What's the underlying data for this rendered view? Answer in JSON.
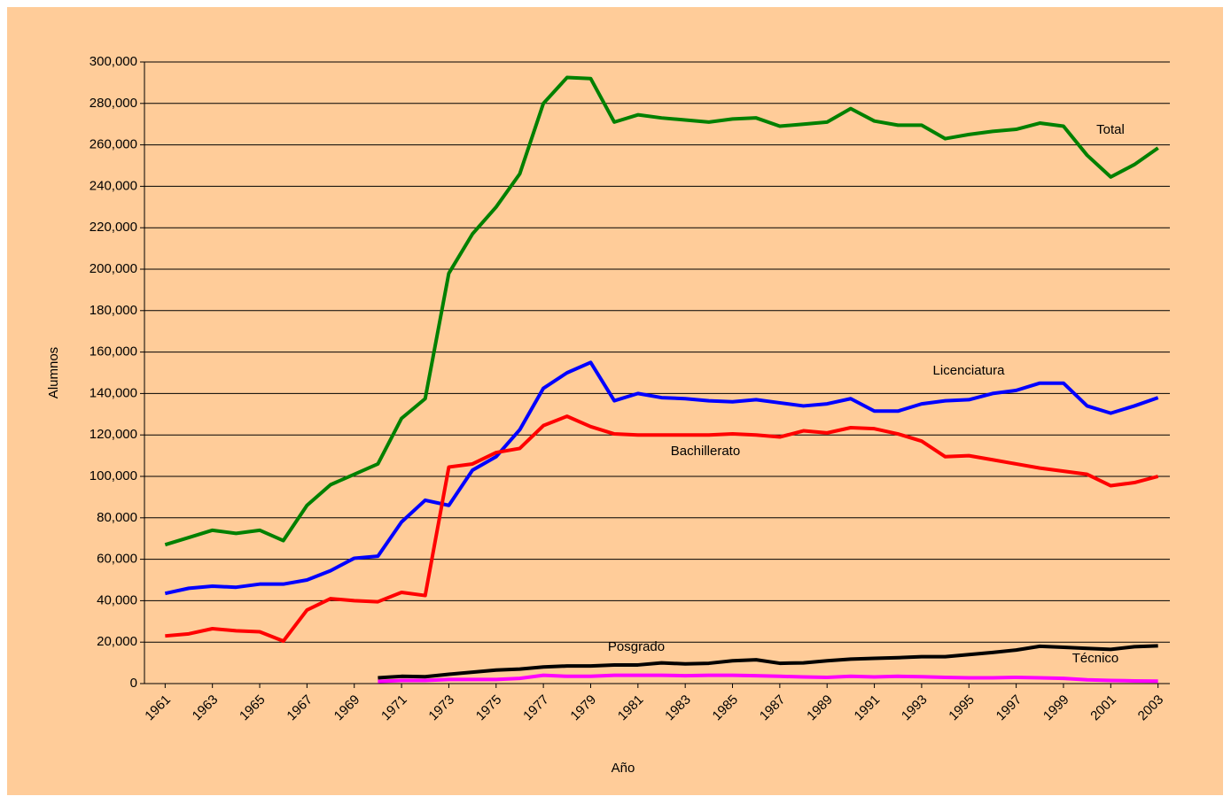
{
  "chart_data": {
    "type": "line",
    "x_label": "Año",
    "y_label": "Alumnos",
    "categories": [
      "1961",
      null,
      "1963",
      null,
      "1965",
      null,
      "1967",
      null,
      "1969",
      null,
      "1971",
      null,
      "1973",
      null,
      "1975",
      null,
      "1977",
      null,
      "1979",
      null,
      "1981",
      null,
      "1983",
      null,
      "1985",
      null,
      "1987",
      null,
      "1989",
      null,
      "1991",
      null,
      "1993",
      null,
      "1995",
      null,
      "1997",
      null,
      "1999",
      null,
      "2001",
      null,
      "2003"
    ],
    "series": [
      {
        "name": "Total",
        "color": "#008000",
        "values": [
          67000,
          70500,
          74000,
          72500,
          74000,
          69000,
          86000,
          96000,
          101000,
          106000,
          128000,
          137500,
          198000,
          217000,
          230000,
          246000,
          280000,
          292500,
          292000,
          271000,
          274500,
          273000,
          272000,
          271000,
          272500,
          273000,
          269000,
          270000,
          271000,
          277500,
          271500,
          269500,
          269500,
          263000,
          265000,
          266500,
          267500,
          270500,
          269000,
          255000,
          244500,
          250500,
          258500
        ]
      },
      {
        "name": "Licenciatura",
        "color": "#0000ff",
        "values": [
          43500,
          46000,
          47000,
          46500,
          48000,
          48000,
          50000,
          54500,
          60500,
          61500,
          78000,
          88500,
          86000,
          103000,
          109500,
          122500,
          142500,
          150000,
          155000,
          136500,
          140000,
          138000,
          137500,
          136500,
          136000,
          137000,
          135500,
          134000,
          135000,
          137500,
          131500,
          131500,
          135000,
          136500,
          137000,
          140000,
          141500,
          145000,
          145000,
          134000,
          130500,
          134000,
          138000
        ]
      },
      {
        "name": "Bachillerato",
        "color": "#ff0000",
        "values": [
          23000,
          24000,
          26500,
          25500,
          25000,
          20500,
          35500,
          41000,
          40000,
          39500,
          44000,
          42500,
          104500,
          106000,
          111500,
          113500,
          124500,
          129000,
          124000,
          120500,
          120000,
          120000,
          120000,
          120000,
          120500,
          120000,
          119000,
          122000,
          121000,
          123500,
          123000,
          120500,
          117000,
          109500,
          110000,
          108000,
          106000,
          104000,
          102500,
          101000,
          95500,
          97000,
          100000
        ]
      },
      {
        "name": "Posgrado",
        "color": "#000000",
        "values": [
          null,
          null,
          null,
          null,
          null,
          null,
          null,
          null,
          null,
          2800,
          3500,
          3300,
          4500,
          5500,
          6500,
          7000,
          8000,
          8500,
          8500,
          9000,
          9000,
          10000,
          9500,
          9800,
          11000,
          11500,
          9800,
          10000,
          11000,
          11800,
          12200,
          12500,
          13000,
          13000,
          14000,
          15000,
          16200,
          18000,
          17500,
          17000,
          16500,
          17800,
          18200
        ]
      },
      {
        "name": "Técnico",
        "color": "#ff00ff",
        "values": [
          null,
          null,
          null,
          null,
          null,
          null,
          null,
          null,
          null,
          1000,
          1500,
          1500,
          2000,
          2000,
          2000,
          2500,
          4000,
          3500,
          3500,
          4000,
          4000,
          4000,
          3800,
          4000,
          4000,
          3800,
          3500,
          3200,
          3000,
          3500,
          3200,
          3500,
          3300,
          3000,
          2800,
          2800,
          3000,
          2800,
          2500,
          1800,
          1500,
          1300,
          1200
        ]
      }
    ],
    "ylim": [
      0,
      300000
    ],
    "yticks": [
      0,
      {
        "value": 20000,
        "label": "20,000"
      },
      {
        "value": 40000,
        "label": "40,000"
      },
      {
        "value": 60000,
        "label": "60,000"
      },
      {
        "value": 80000,
        "label": "80,000"
      },
      {
        "value": 100000,
        "label": "100,000"
      },
      {
        "value": 120000,
        "label": "120,000"
      },
      {
        "value": 140000,
        "label": "140,000"
      },
      {
        "value": 160000,
        "label": "160,000"
      },
      {
        "value": 180000,
        "label": "180,000"
      },
      {
        "value": 200000,
        "label": "200,000"
      },
      {
        "value": 220000,
        "label": "220,000"
      },
      {
        "value": 240000,
        "label": "240,000"
      },
      {
        "value": 260000,
        "label": "260,000"
      },
      {
        "value": 280000,
        "label": "280,000"
      },
      {
        "value": 300000,
        "label": "300,000"
      }
    ],
    "grid": true
  }
}
